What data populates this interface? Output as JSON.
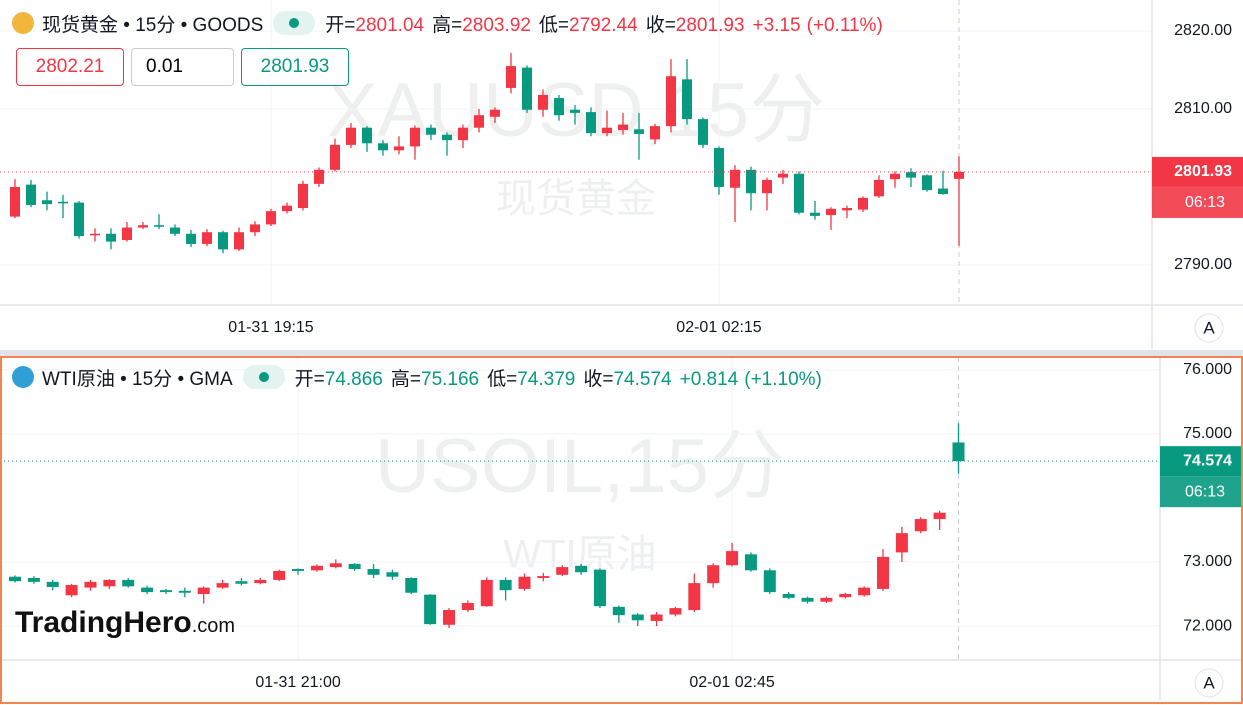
{
  "chart_data": [
    {
      "type": "candlestick",
      "title": "现货黄金 • 15分 • GOODS",
      "symbol_watermark": "XAUUSD,15分",
      "name_watermark": "现货黄金",
      "ohlc_labels": {
        "open": "开=",
        "high": "高=",
        "low": "低=",
        "close": "收="
      },
      "change": {
        "value": 3.15,
        "label": "+3.15"
      },
      "change_pct": {
        "value": 0.11,
        "label": "(+0.11%)"
      },
      "open": [
        2796.2,
        2800.3,
        2798.3,
        2798.1,
        2798,
        2793.8,
        2794,
        2793.2,
        2794.8,
        2795.1,
        2794.8,
        2794,
        2792.7,
        2794.2,
        2792,
        2794.2,
        2795.2,
        2796.9,
        2797.3,
        2800.4,
        2802.2,
        2805.4,
        2807.6,
        2805.6,
        2804.7,
        2805.2,
        2807.6,
        2806.7,
        2806,
        2807.6,
        2809,
        2812.7,
        2815.3,
        2809.9,
        2811.4,
        2809.9,
        2809.6,
        2806.9,
        2807.3,
        2807.4,
        2806.1,
        2807.8,
        2813.8,
        2808.7,
        2805,
        2799.9,
        2802.2,
        2799.2,
        2801.2,
        2801.7,
        2796.7,
        2796.4,
        2797,
        2797.1,
        2798.8,
        2801,
        2801.9,
        2801.5,
        2799.8,
        2801.04
      ],
      "high": [
        2801,
        2800.9,
        2799.4,
        2799,
        2798.2,
        2794.7,
        2794.7,
        2795.5,
        2795.5,
        2796.5,
        2795.2,
        2794.5,
        2794.6,
        2794.4,
        2794.8,
        2795.6,
        2797.2,
        2798,
        2800.8,
        2802.5,
        2806.2,
        2808.2,
        2807.8,
        2806,
        2806.5,
        2807.9,
        2808,
        2807,
        2808,
        2810,
        2810.2,
        2817.2,
        2815.6,
        2812.5,
        2811.8,
        2810.5,
        2810.2,
        2809.8,
        2809.5,
        2809.5,
        2808.1,
        2816.4,
        2816.4,
        2808.9,
        2805.2,
        2802.8,
        2802.6,
        2801.2,
        2802.2,
        2802,
        2798.2,
        2797.4,
        2797.6,
        2798.8,
        2801.5,
        2802,
        2802.4,
        2801.6,
        2802.1,
        2803.92
      ],
      "low": [
        2796,
        2797.4,
        2797,
        2796,
        2793.4,
        2793,
        2792,
        2793,
        2794.6,
        2794.6,
        2793.7,
        2792.3,
        2792.4,
        2791.5,
        2791.8,
        2793.7,
        2795,
        2796.6,
        2797,
        2800,
        2802,
        2805,
        2804.5,
        2804,
        2804.2,
        2803.5,
        2806,
        2804,
        2805,
        2807,
        2808.2,
        2812,
        2809.5,
        2809,
        2808.5,
        2808,
        2806.5,
        2806.5,
        2806.7,
        2803.5,
        2805.5,
        2807,
        2808,
        2805,
        2799,
        2795.5,
        2797,
        2797,
        2800.4,
        2796.5,
        2795.8,
        2794.5,
        2796,
        2796.8,
        2798.6,
        2799.9,
        2800,
        2799.4,
        2799,
        2792.44
      ],
      "close": [
        2800,
        2797.7,
        2797.8,
        2797.9,
        2793.7,
        2794,
        2793,
        2794.8,
        2795.1,
        2794.9,
        2794,
        2792.7,
        2794.2,
        2792,
        2794.2,
        2795.2,
        2796.9,
        2797.6,
        2800.4,
        2802.2,
        2805.4,
        2807.6,
        2805.6,
        2804.7,
        2805.2,
        2807.6,
        2806.7,
        2806,
        2807.6,
        2809.2,
        2809.9,
        2815.5,
        2809.9,
        2811.8,
        2809.2,
        2809.5,
        2806.9,
        2807.6,
        2808,
        2806.8,
        2807.8,
        2814.2,
        2808.7,
        2805.4,
        2800,
        2802.2,
        2799.2,
        2800.9,
        2801.7,
        2796.7,
        2796.3,
        2797.2,
        2797.3,
        2798.6,
        2800.9,
        2801.7,
        2801.2,
        2799.6,
        2799.1,
        2801.93
      ],
      "up_color": "#f23645",
      "down_color": "#089981",
      "ylim": [
        2784.87,
        2823.97
      ],
      "yticks": [
        {
          "value": 2790,
          "label": "2790.00"
        },
        {
          "value": 2810,
          "label": "2810.00"
        },
        {
          "value": 2820,
          "label": "2820.00"
        }
      ],
      "xticks": [
        {
          "value": 16,
          "label": "01-31 19:15"
        },
        {
          "value": 44,
          "label": "02-01 02:15"
        }
      ],
      "grid": true,
      "countdown": "06:13",
      "scale_button": "A"
    },
    {
      "type": "candlestick",
      "title": "WTI原油 • 15分 • GMA",
      "symbol_watermark": "USOIL,15分",
      "name_watermark": "WTI原油",
      "ohlc_labels": {
        "open": "开=",
        "high": "高=",
        "low": "低=",
        "close": "收="
      },
      "change": {
        "value": 0.814,
        "label": "+0.814"
      },
      "change_pct": {
        "value": 1.1,
        "label": "(+1.10%)"
      },
      "open": [
        72.77,
        72.75,
        72.69,
        72.48,
        72.6,
        72.62,
        72.72,
        72.6,
        72.56,
        72.55,
        72.5,
        72.6,
        72.7,
        72.67,
        72.72,
        72.89,
        72.87,
        72.92,
        72.97,
        72.89,
        72.84,
        72.75,
        72.49,
        72.02,
        72.25,
        72.31,
        72.72,
        72.58,
        72.75,
        72.8,
        72.94,
        72.88,
        72.3,
        72.18,
        72.08,
        72.18,
        72.25,
        72.67,
        72.95,
        73.12,
        72.87,
        72.5,
        72.44,
        72.38,
        72.45,
        72.48,
        72.58,
        73.15,
        73.48,
        73.67,
        74.866
      ],
      "high": [
        72.79,
        72.78,
        72.72,
        72.66,
        72.72,
        72.73,
        72.75,
        72.63,
        72.58,
        72.6,
        72.62,
        72.72,
        72.75,
        72.75,
        72.88,
        72.9,
        72.96,
        73.04,
        72.98,
        72.97,
        72.88,
        72.76,
        72.5,
        72.28,
        72.4,
        72.76,
        72.76,
        72.82,
        72.83,
        72.95,
        72.97,
        72.9,
        72.32,
        72.2,
        72.22,
        72.3,
        72.82,
        72.98,
        73.3,
        73.15,
        72.9,
        72.53,
        72.46,
        72.46,
        72.52,
        72.62,
        73.2,
        73.55,
        73.7,
        73.8,
        75.166
      ],
      "low": [
        72.68,
        72.66,
        72.56,
        72.45,
        72.55,
        72.58,
        72.6,
        72.5,
        72.5,
        72.45,
        72.35,
        72.58,
        72.63,
        72.65,
        72.7,
        72.8,
        72.85,
        72.9,
        72.86,
        72.75,
        72.72,
        72.5,
        72.02,
        71.97,
        72.22,
        72.3,
        72.4,
        72.55,
        72.7,
        72.78,
        72.8,
        72.28,
        72.05,
        72.0,
        72.0,
        72.15,
        72.22,
        72.6,
        72.93,
        72.85,
        72.5,
        72.42,
        72.35,
        72.36,
        72.43,
        72.46,
        72.55,
        73.0,
        73.45,
        73.5,
        74.379
      ],
      "close": [
        72.7,
        72.69,
        72.61,
        72.64,
        72.69,
        72.72,
        72.62,
        72.53,
        72.53,
        72.52,
        72.6,
        72.67,
        72.66,
        72.72,
        72.86,
        72.86,
        72.94,
        72.98,
        72.89,
        72.8,
        72.77,
        72.52,
        72.03,
        72.25,
        72.36,
        72.72,
        72.56,
        72.77,
        72.78,
        72.92,
        72.84,
        72.31,
        72.17,
        72.09,
        72.18,
        72.28,
        72.67,
        72.95,
        73.17,
        72.87,
        72.53,
        72.44,
        72.38,
        72.44,
        72.5,
        72.6,
        73.08,
        73.45,
        73.67,
        73.77,
        74.574
      ],
      "up_color": "#f23645",
      "down_color": "#089981",
      "ylim": [
        71.47,
        76.2
      ],
      "yticks": [
        {
          "value": 72,
          "label": "72.000"
        },
        {
          "value": 73,
          "label": "73.000"
        },
        {
          "value": 75,
          "label": "75.000"
        },
        {
          "value": 76,
          "label": "76.000"
        }
      ],
      "xticks": [
        {
          "value": 15,
          "label": "01-31 21:00"
        },
        {
          "value": 38,
          "label": "02-01 02:45"
        }
      ],
      "grid": true,
      "countdown": "06:13",
      "scale_button": "A"
    }
  ],
  "order_panel": {
    "sell": 2802.21,
    "quantity": 0.01,
    "buy": 2801.93
  },
  "logo": {
    "name": "TradingHero",
    "suffix": ".com"
  }
}
